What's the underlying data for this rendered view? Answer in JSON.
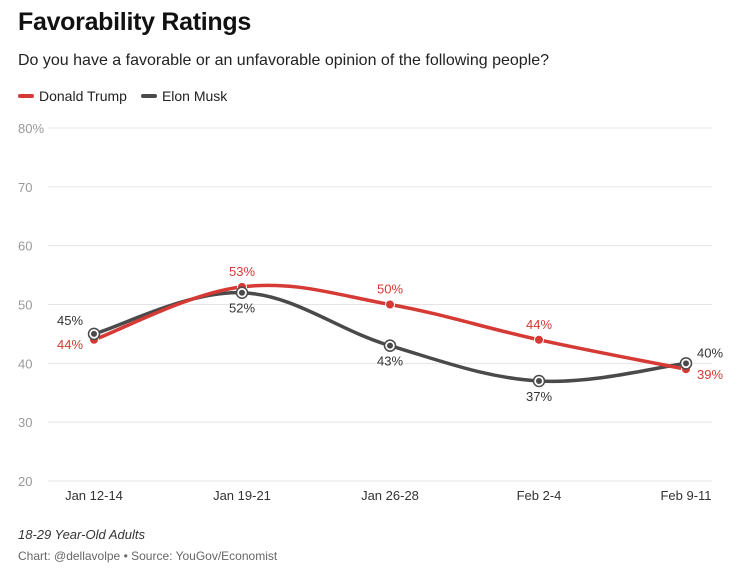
{
  "chart_data": {
    "type": "line",
    "title": "Favorability Ratings",
    "subtitle": "Do you have a favorable or an unfavorable opinion of the following people?",
    "categories": [
      "Jan 12-14",
      "Jan 19-21",
      "Jan 26-28",
      "Feb 2-4",
      "Feb 9-11"
    ],
    "series": [
      {
        "name": "Donald Trump",
        "color": "#d63a34",
        "values": [
          44,
          53,
          50,
          44,
          39
        ],
        "labels": [
          "44%",
          "53%",
          "50%",
          "44%",
          "39%"
        ]
      },
      {
        "name": "Elon Musk",
        "color": "#4a4a4a",
        "values": [
          45,
          52,
          43,
          37,
          40
        ],
        "labels": [
          "45%",
          "52%",
          "43%",
          "37%",
          "40%"
        ]
      }
    ],
    "ylim": [
      20,
      80
    ],
    "yticks": [
      20,
      30,
      40,
      50,
      60,
      70,
      80
    ],
    "ytick_labels": [
      "20",
      "30",
      "40",
      "50",
      "60",
      "70",
      "80%"
    ],
    "grid": true,
    "legend_position": "top-left"
  },
  "footer": {
    "note": "18-29 Year-Old Adults",
    "source": "Chart: @dellavolpe • Source: YouGov/Economist"
  }
}
